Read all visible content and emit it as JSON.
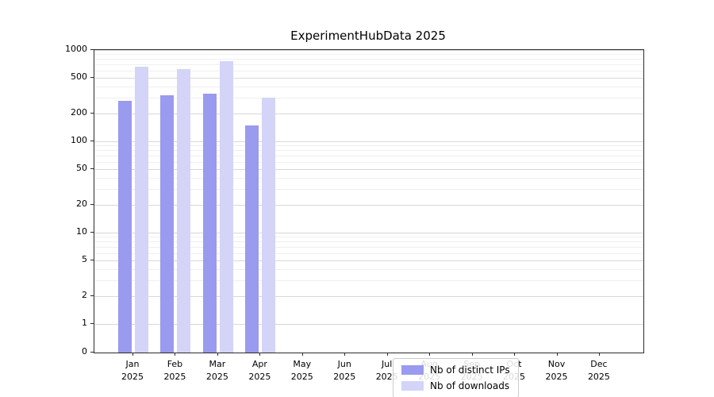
{
  "title": "ExperimentHubData 2025",
  "chart_data": {
    "type": "bar",
    "title": "ExperimentHubData 2025",
    "categories": [
      "Jan",
      "Feb",
      "Mar",
      "Apr",
      "May",
      "Jun",
      "Jul",
      "Aug",
      "Sep",
      "Oct",
      "Nov",
      "Dec"
    ],
    "category_year": "2025",
    "series": [
      {
        "name": "Nb of distinct IPs",
        "color": "#9a9aee",
        "values": [
          280,
          320,
          330,
          150,
          null,
          null,
          null,
          null,
          null,
          null,
          null,
          null
        ]
      },
      {
        "name": "Nb of downloads",
        "color": "#d4d4f9",
        "values": [
          660,
          620,
          760,
          300,
          null,
          null,
          null,
          null,
          null,
          null,
          null,
          null
        ]
      }
    ],
    "y_ticks": [
      0,
      1,
      2,
      5,
      10,
      20,
      50,
      100,
      200,
      500,
      1000
    ],
    "y_scale": "log-with-zero-baseline",
    "ylim": [
      0,
      1000
    ],
    "xlabel": "",
    "ylabel": "",
    "grid": "horizontal",
    "legend_position": "lower center"
  }
}
